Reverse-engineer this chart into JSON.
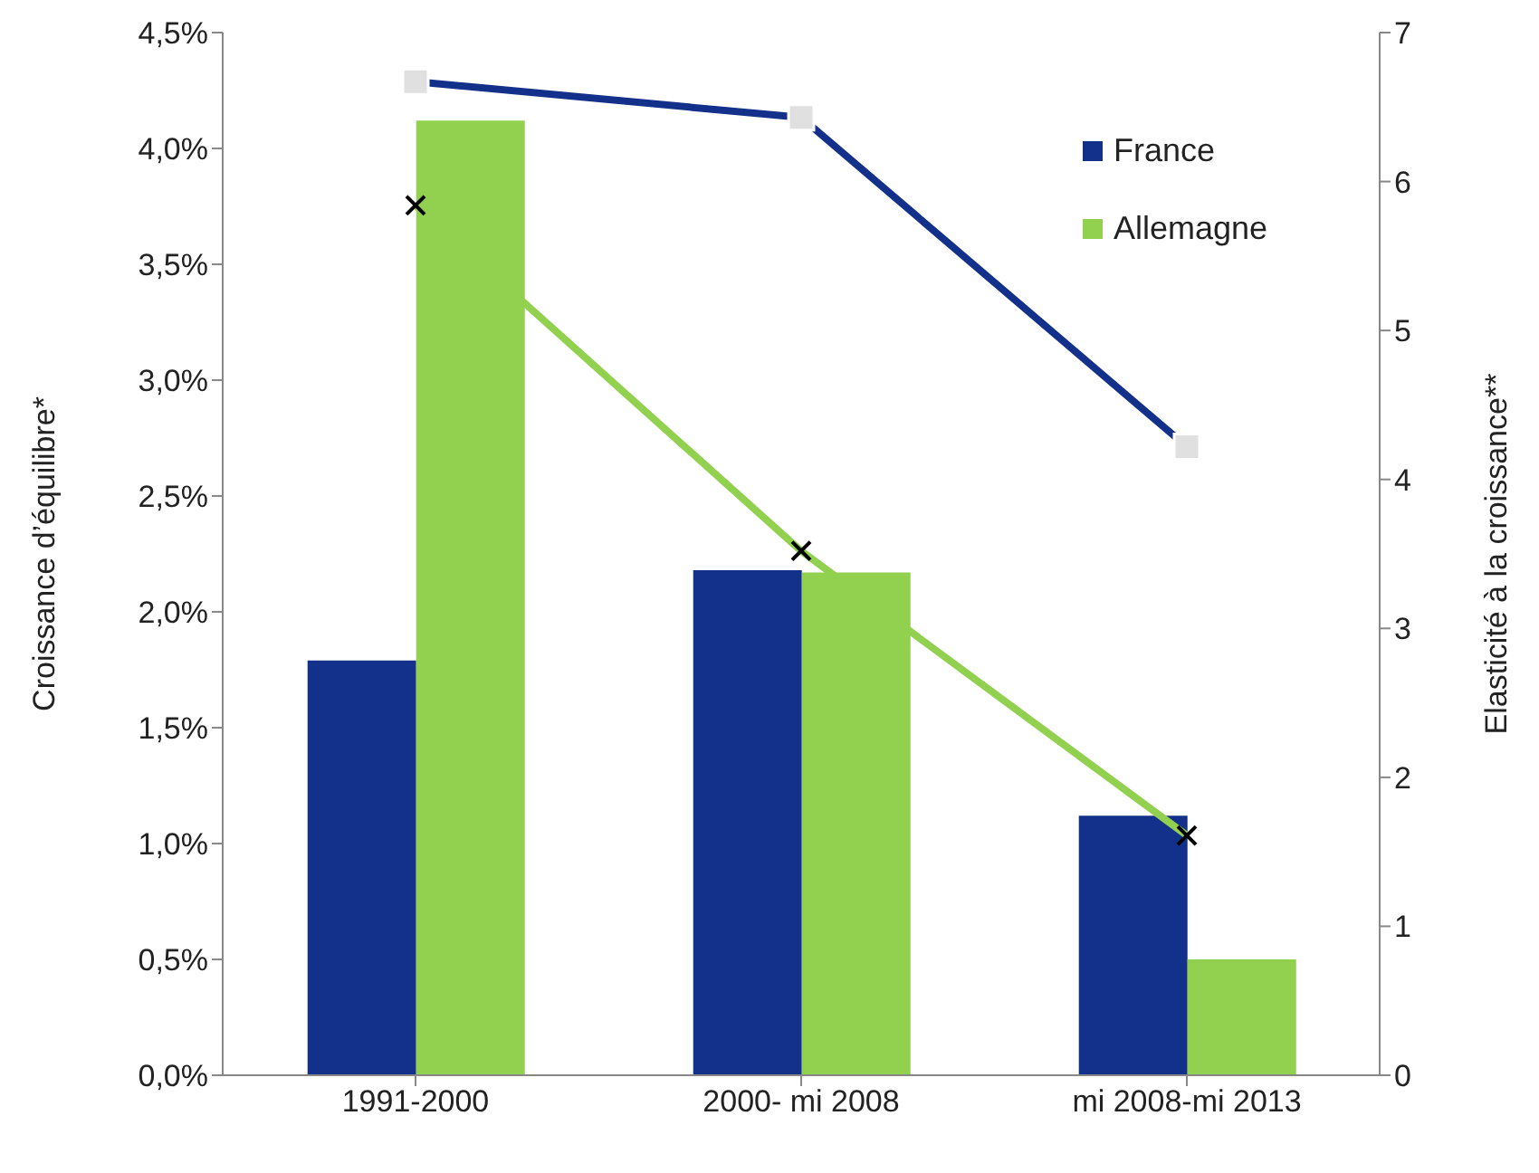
{
  "chart_data": {
    "type": "bar",
    "ylabel": "Croissance d’équilibre*",
    "y2label": "Elasticité à la croissance**",
    "categories": [
      "1991-2000",
      "2000- mi 2008",
      "mi 2008-mi 2013"
    ],
    "series": [
      {
        "name": "France",
        "color": "#13318a",
        "values": [
          1.79,
          2.18,
          1.12
        ]
      },
      {
        "name": "Allemagne",
        "color": "#92d050",
        "values": [
          4.12,
          2.17,
          0.5
        ]
      },
      {
        "type": "line",
        "axis": "y2",
        "color": "#13318a",
        "marker": "square",
        "values": [
          6.67,
          6.43,
          4.22
        ]
      },
      {
        "type": "line",
        "axis": "y2",
        "color": "#92d050",
        "marker": "cross",
        "values": [
          5.84,
          3.52,
          1.61
        ]
      }
    ],
    "ylim": [
      0,
      4.5
    ],
    "yticks": [
      {
        "value": 0,
        "label": "0,0%"
      },
      {
        "value": 0.5,
        "label": "0,5%"
      },
      {
        "value": 1,
        "label": "1,0%"
      },
      {
        "value": 1.5,
        "label": "1,5%"
      },
      {
        "value": 2,
        "label": "2,0%"
      },
      {
        "value": 2.5,
        "label": "2,5%"
      },
      {
        "value": 3,
        "label": "3,0%"
      },
      {
        "value": 3.5,
        "label": "3,5%"
      },
      {
        "value": 4,
        "label": "4,0%"
      },
      {
        "value": 4.5,
        "label": "4,5%"
      }
    ],
    "y2lim": [
      0,
      7
    ],
    "y2ticks": [
      0,
      1,
      2,
      3,
      4,
      5,
      6,
      7
    ],
    "grid": false,
    "legend": "top right"
  }
}
